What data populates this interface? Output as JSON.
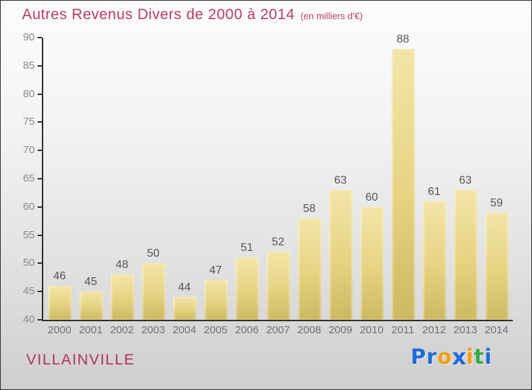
{
  "title": {
    "main": "Autres Revenus Divers de 2000 à 2014",
    "unit": "(en milliers d'€)"
  },
  "chart_data": {
    "type": "bar",
    "title": "Autres Revenus Divers de 2000 à 2014",
    "subtitle": "(en milliers d'€)",
    "categories": [
      "2000",
      "2001",
      "2002",
      "2003",
      "2004",
      "2005",
      "2006",
      "2007",
      "2008",
      "2009",
      "2010",
      "2011",
      "2012",
      "2013",
      "2014"
    ],
    "values": [
      46,
      45,
      48,
      50,
      44,
      47,
      51,
      52,
      58,
      63,
      60,
      88,
      61,
      63,
      59
    ],
    "ylim": [
      40,
      90
    ],
    "yticks": [
      40,
      45,
      50,
      55,
      60,
      65,
      70,
      75,
      80,
      85,
      90
    ],
    "grid": false,
    "legend": false,
    "value_labels": true,
    "colors": {
      "bar_top": "#f2e5a7",
      "bar_bottom": "#ccb961",
      "axis": "#2f2f2f",
      "tick_label": "#8a8a8a",
      "year_label": "#707070",
      "value_label": "#555555",
      "title": "#be3a69",
      "background_top": "#fdfdfd",
      "background_bottom": "#cecece"
    }
  },
  "footer": {
    "location": "VILLAINVILLE",
    "logo_text": "Proxiti",
    "logo_letters": [
      {
        "ch": "P",
        "color": "#1d6ad8"
      },
      {
        "ch": "r",
        "color": "#1d6ad8"
      },
      {
        "ch": "o",
        "color": "#f49d0b"
      },
      {
        "ch": "x",
        "color": "#1d6ad8"
      },
      {
        "ch": "i",
        "color": "#f49d0b"
      },
      {
        "ch": "t",
        "color": "#35a947"
      },
      {
        "ch": "i",
        "color": "#1d6ad8"
      }
    ]
  }
}
